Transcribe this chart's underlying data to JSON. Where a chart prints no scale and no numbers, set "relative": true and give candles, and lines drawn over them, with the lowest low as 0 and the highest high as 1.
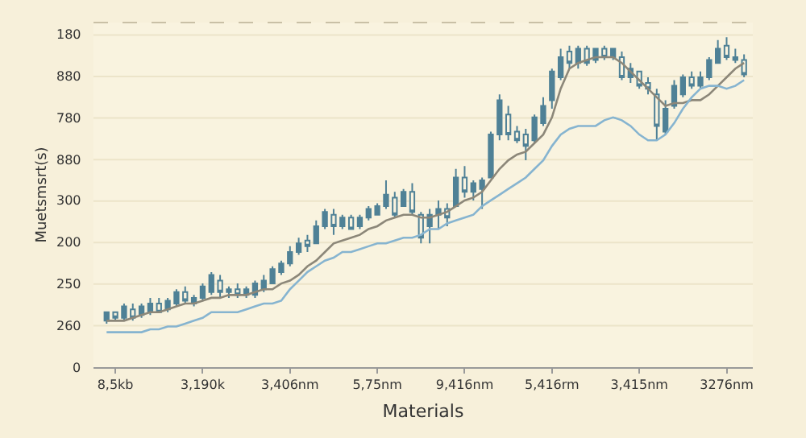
{
  "chart_data": {
    "type": "candlestick",
    "xlabel": "Materials",
    "ylabel": "Muetsmsrt(s)",
    "relative": true,
    "categories": [
      null,
      "8,5kb",
      null,
      null,
      null,
      null,
      null,
      null,
      null,
      null,
      null,
      "3,190k",
      null,
      null,
      null,
      null,
      null,
      null,
      null,
      null,
      null,
      "3,406nm",
      null,
      null,
      null,
      null,
      null,
      null,
      null,
      null,
      null,
      "5,75nm",
      null,
      null,
      null,
      null,
      null,
      null,
      null,
      null,
      null,
      "9,416nm",
      null,
      null,
      null,
      null,
      null,
      null,
      null,
      null,
      null,
      "5,416rm",
      null,
      null,
      null,
      null,
      null,
      null,
      null,
      null,
      null,
      "3,415nm",
      null,
      null,
      null,
      null,
      null,
      null,
      null,
      null,
      null,
      "3276nm",
      null,
      null
    ],
    "annotations": [
      "180",
      "880",
      "780",
      "880",
      "300",
      "200",
      "250",
      "260",
      "0"
    ],
    "grid": "y",
    "series": [
      {
        "type": "line",
        "color": "#8c8779",
        "values": [
          0.01,
          0.01,
          0.01,
          0.02,
          0.03,
          0.04,
          0.04,
          0.05,
          0.06,
          0.07,
          0.07,
          0.08,
          0.09,
          0.09,
          0.1,
          0.1,
          0.1,
          0.11,
          0.12,
          0.12,
          0.14,
          0.15,
          0.17,
          0.2,
          0.22,
          0.25,
          0.28,
          0.29,
          0.3,
          0.31,
          0.33,
          0.34,
          0.36,
          0.37,
          0.38,
          0.38,
          0.37,
          0.37,
          0.38,
          0.39,
          0.41,
          0.43,
          0.44,
          0.46,
          0.5,
          0.54,
          0.57,
          0.59,
          0.6,
          0.63,
          0.66,
          0.72,
          0.82,
          0.89,
          0.91,
          0.92,
          0.93,
          0.93,
          0.93,
          0.91,
          0.88,
          0.85,
          0.82,
          0.79,
          0.76,
          0.77,
          0.77,
          0.78,
          0.78,
          0.8,
          0.83,
          0.86,
          0.89,
          0.91
        ]
      },
      {
        "type": "line",
        "color": "#86b4d0",
        "values": [
          -0.03,
          -0.03,
          -0.03,
          -0.03,
          -0.03,
          -0.02,
          -0.02,
          -0.01,
          -0.01,
          0,
          0.01,
          0.02,
          0.04,
          0.04,
          0.04,
          0.04,
          0.05,
          0.06,
          0.07,
          0.07,
          0.08,
          0.12,
          0.15,
          0.18,
          0.2,
          0.22,
          0.23,
          0.25,
          0.25,
          0.26,
          0.27,
          0.28,
          0.28,
          0.29,
          0.3,
          0.3,
          0.31,
          0.33,
          0.33,
          0.35,
          0.36,
          0.37,
          0.38,
          0.41,
          0.43,
          0.45,
          0.47,
          0.49,
          0.51,
          0.54,
          0.57,
          0.62,
          0.66,
          0.68,
          0.69,
          0.69,
          0.69,
          0.71,
          0.72,
          0.71,
          0.69,
          0.66,
          0.64,
          0.64,
          0.66,
          0.7,
          0.75,
          0.79,
          0.82,
          0.83,
          0.83,
          0.82,
          0.83,
          0.85
        ]
      },
      {
        "color": "#4f8196",
        "ohlc": [
          [
            0.01,
            0.04,
            0,
            0.04
          ],
          [
            0.04,
            0.04,
            0.01,
            0.02
          ],
          [
            0.02,
            0.07,
            0.01,
            0.06
          ],
          [
            0.05,
            0.07,
            0.01,
            0.02
          ],
          [
            0.03,
            0.07,
            0.02,
            0.06
          ],
          [
            0.04,
            0.09,
            0.03,
            0.07
          ],
          [
            0.07,
            0.09,
            0.04,
            0.04
          ],
          [
            0.05,
            0.09,
            0.04,
            0.08
          ],
          [
            0.07,
            0.12,
            0.06,
            0.11
          ],
          [
            0.11,
            0.13,
            0.07,
            0.08
          ],
          [
            0.07,
            0.1,
            0.06,
            0.09
          ],
          [
            0.09,
            0.14,
            0.08,
            0.13
          ],
          [
            0.11,
            0.18,
            0.1,
            0.17
          ],
          [
            0.15,
            0.17,
            0.09,
            0.11
          ],
          [
            0.11,
            0.13,
            0.09,
            0.12
          ],
          [
            0.12,
            0.14,
            0.09,
            0.1
          ],
          [
            0.1,
            0.13,
            0.09,
            0.12
          ],
          [
            0.1,
            0.15,
            0.09,
            0.14
          ],
          [
            0.12,
            0.17,
            0.11,
            0.15
          ],
          [
            0.14,
            0.2,
            0.14,
            0.19
          ],
          [
            0.18,
            0.22,
            0.17,
            0.21
          ],
          [
            0.21,
            0.27,
            0.2,
            0.25
          ],
          [
            0.25,
            0.3,
            0.24,
            0.28
          ],
          [
            0.29,
            0.31,
            0.25,
            0.27
          ],
          [
            0.28,
            0.36,
            0.28,
            0.34
          ],
          [
            0.34,
            0.4,
            0.33,
            0.39
          ],
          [
            0.38,
            0.4,
            0.31,
            0.34
          ],
          [
            0.34,
            0.38,
            0.33,
            0.37
          ],
          [
            0.37,
            0.38,
            0.33,
            0.33
          ],
          [
            0.34,
            0.38,
            0.33,
            0.37
          ],
          [
            0.37,
            0.41,
            0.36,
            0.4
          ],
          [
            0.38,
            0.42,
            0.38,
            0.41
          ],
          [
            0.41,
            0.5,
            0.4,
            0.45
          ],
          [
            0.44,
            0.46,
            0.37,
            0.38
          ],
          [
            0.41,
            0.47,
            0.41,
            0.46
          ],
          [
            0.46,
            0.49,
            0.38,
            0.39
          ],
          [
            0.38,
            0.39,
            0.28,
            0.3
          ],
          [
            0.34,
            0.4,
            0.28,
            0.38
          ],
          [
            0.38,
            0.43,
            0.33,
            0.4
          ],
          [
            0.4,
            0.42,
            0.34,
            0.37
          ],
          [
            0.41,
            0.54,
            0.41,
            0.51
          ],
          [
            0.51,
            0.55,
            0.44,
            0.46
          ],
          [
            0.46,
            0.5,
            0.43,
            0.49
          ],
          [
            0.47,
            0.51,
            0.4,
            0.5
          ],
          [
            0.51,
            0.67,
            0.51,
            0.66
          ],
          [
            0.66,
            0.8,
            0.64,
            0.78
          ],
          [
            0.73,
            0.76,
            0.64,
            0.66
          ],
          [
            0.67,
            0.69,
            0.63,
            0.64
          ],
          [
            0.66,
            0.68,
            0.57,
            0.62
          ],
          [
            0.64,
            0.73,
            0.63,
            0.72
          ],
          [
            0.7,
            0.79,
            0.69,
            0.76
          ],
          [
            0.78,
            0.89,
            0.75,
            0.88
          ],
          [
            0.86,
            0.96,
            0.85,
            0.93
          ],
          [
            0.95,
            0.97,
            0.89,
            0.91
          ],
          [
            0.91,
            0.97,
            0.89,
            0.96
          ],
          [
            0.96,
            0.97,
            0.9,
            0.91
          ],
          [
            0.92,
            0.96,
            0.91,
            0.96
          ],
          [
            0.96,
            0.97,
            0.92,
            0.93
          ],
          [
            0.93,
            0.96,
            0.92,
            0.96
          ],
          [
            0.93,
            0.95,
            0.85,
            0.86
          ],
          [
            0.86,
            0.91,
            0.84,
            0.89
          ],
          [
            0.88,
            0.88,
            0.82,
            0.83
          ],
          [
            0.84,
            0.86,
            0.8,
            0.82
          ],
          [
            0.8,
            0.82,
            0.64,
            0.69
          ],
          [
            0.67,
            0.78,
            0.66,
            0.75
          ],
          [
            0.76,
            0.85,
            0.75,
            0.83
          ],
          [
            0.8,
            0.87,
            0.79,
            0.86
          ],
          [
            0.86,
            0.88,
            0.82,
            0.83
          ],
          [
            0.83,
            0.88,
            0.82,
            0.86
          ],
          [
            0.86,
            0.93,
            0.85,
            0.92
          ],
          [
            0.91,
            0.99,
            0.91,
            0.96
          ],
          [
            0.97,
            1.0,
            0.92,
            0.93
          ],
          [
            0.93,
            0.96,
            0.91,
            0.92
          ],
          [
            0.92,
            0.94,
            0.86,
            0.87
          ]
        ]
      }
    ]
  }
}
